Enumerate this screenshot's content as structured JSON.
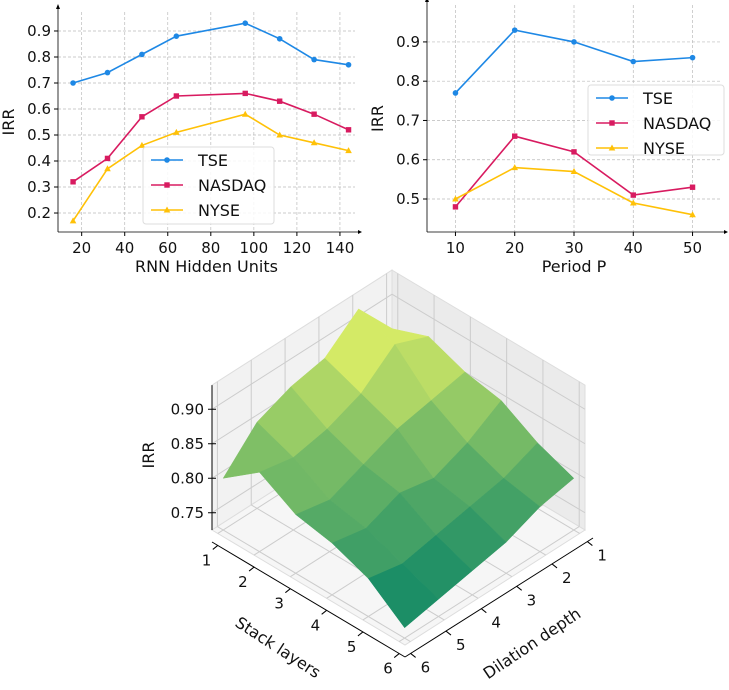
{
  "chart_data": [
    {
      "type": "line",
      "xlabel": "RNN Hidden Units",
      "ylabel": "IRR",
      "x": [
        16,
        32,
        48,
        64,
        96,
        112,
        128,
        144
      ],
      "xlim": [
        9,
        147
      ],
      "ylim": [
        0.127,
        0.973
      ],
      "xticks": [
        20,
        40,
        60,
        80,
        100,
        120,
        140
      ],
      "yticks": [
        0.2,
        0.3,
        0.4,
        0.5,
        0.6,
        0.7,
        0.8,
        0.9
      ],
      "grid": true,
      "legend": "bottom-center",
      "series": [
        {
          "name": "TSE",
          "color": "#1e88e5",
          "marker": "circle",
          "values": [
            0.7,
            0.74,
            0.81,
            0.88,
            0.93,
            0.87,
            0.79,
            0.77
          ]
        },
        {
          "name": "NASDAQ",
          "color": "#d81b60",
          "marker": "square",
          "values": [
            0.32,
            0.41,
            0.57,
            0.65,
            0.66,
            0.63,
            0.58,
            0.52
          ]
        },
        {
          "name": "NYSE",
          "color": "#ffc107",
          "marker": "triangle",
          "values": [
            0.17,
            0.37,
            0.46,
            0.51,
            0.58,
            0.5,
            0.47,
            0.44
          ]
        }
      ]
    },
    {
      "type": "line",
      "xlabel": "Period P",
      "ylabel": "IRR",
      "x": [
        10,
        20,
        30,
        40,
        50
      ],
      "xlim": [
        5.2,
        54.8
      ],
      "ylim": [
        0.416,
        0.994
      ],
      "xticks": [
        10,
        20,
        30,
        40,
        50
      ],
      "yticks": [
        0.5,
        0.6,
        0.7,
        0.8,
        0.9
      ],
      "grid": true,
      "legend": "center-right",
      "series": [
        {
          "name": "TSE",
          "color": "#1e88e5",
          "marker": "circle",
          "values": [
            0.77,
            0.93,
            0.9,
            0.85,
            0.86
          ]
        },
        {
          "name": "NASDAQ",
          "color": "#d81b60",
          "marker": "square",
          "values": [
            0.48,
            0.66,
            0.62,
            0.51,
            0.53
          ]
        },
        {
          "name": "NYSE",
          "color": "#ffc107",
          "marker": "triangle",
          "values": [
            0.5,
            0.58,
            0.57,
            0.49,
            0.46
          ]
        }
      ]
    },
    {
      "type": "surface",
      "xlabel": "Stack layers",
      "ylabel": "Dilation depth",
      "zlabel": "IRR",
      "x": [
        1,
        2,
        3,
        4,
        5,
        6
      ],
      "y": [
        1,
        2,
        3,
        4,
        5,
        6
      ],
      "zticks": [
        "0.75",
        "0.80",
        "0.85",
        "0.90"
      ],
      "zlim": [
        0.725,
        0.935
      ],
      "colormap": "summer",
      "z": [
        [
          0.86,
          0.92,
          0.88,
          0.87,
          0.85,
          0.8
        ],
        [
          0.88,
          0.9,
          0.86,
          0.84,
          0.83,
          0.84
        ],
        [
          0.86,
          0.85,
          0.84,
          0.82,
          0.8,
          0.81
        ],
        [
          0.85,
          0.82,
          0.8,
          0.81,
          0.79,
          0.8
        ],
        [
          0.82,
          0.8,
          0.79,
          0.78,
          0.77,
          0.78
        ],
        [
          0.8,
          0.79,
          0.77,
          0.76,
          0.75,
          0.74
        ]
      ]
    }
  ]
}
